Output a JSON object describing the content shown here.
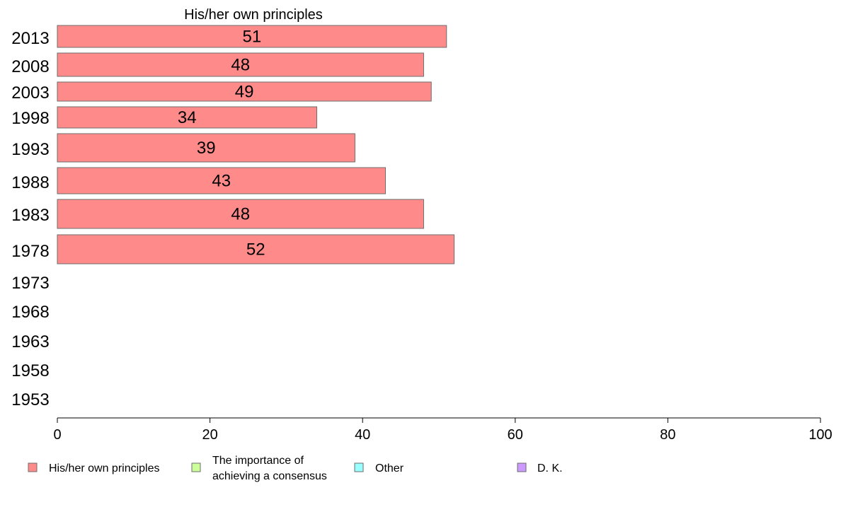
{
  "chart_data": {
    "type": "bar",
    "orientation": "horizontal",
    "title": "His/her own principles",
    "categories": [
      "2013",
      "2008",
      "2003",
      "1998",
      "1993",
      "1988",
      "1983",
      "1978",
      "1973",
      "1968",
      "1963",
      "1958",
      "1953"
    ],
    "series": [
      {
        "name": "His/her own principles",
        "values": [
          51,
          48,
          49,
          34,
          39,
          43,
          48,
          52,
          null,
          null,
          null,
          null,
          null
        ],
        "color": "#ff8a8a"
      }
    ],
    "xlim": [
      0,
      100
    ],
    "xticks": [
      "0",
      "20",
      "40",
      "60",
      "80",
      "100"
    ],
    "grid": false,
    "legend_position": "bottom",
    "legend": [
      {
        "lines": [
          "His/her own principles"
        ],
        "color": "#ff8a8a"
      },
      {
        "lines": [
          "The importance of",
          "achieving a consensus"
        ],
        "color": "#ccff99"
      },
      {
        "lines": [
          "Other"
        ],
        "color": "#99ffff"
      },
      {
        "lines": [
          "D. K."
        ],
        "color": "#cc99ff"
      }
    ]
  }
}
